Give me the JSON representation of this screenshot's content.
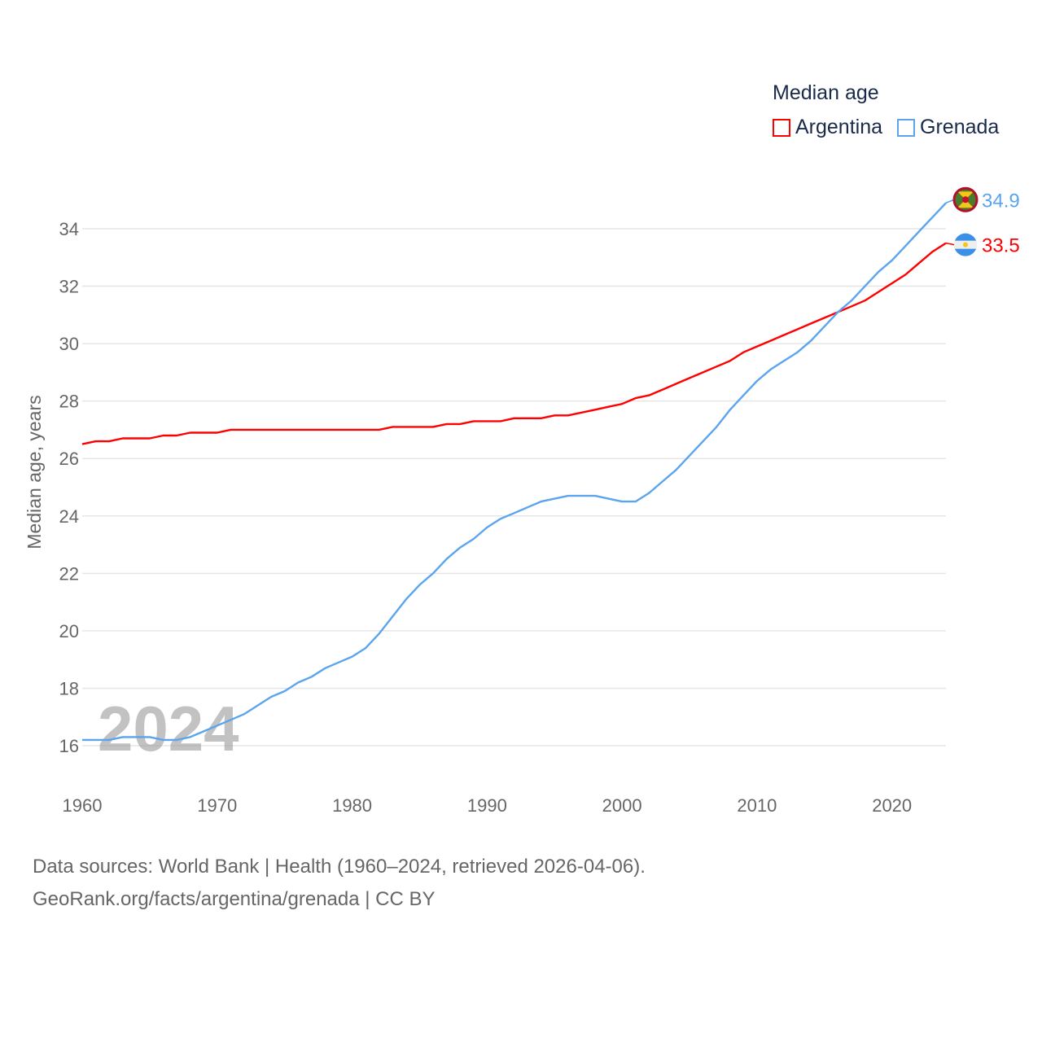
{
  "chart_data": {
    "type": "line",
    "title": "Median age",
    "xlabel": "",
    "ylabel": "Median age, years",
    "xlim": [
      1960,
      2024
    ],
    "ylim": [
      15,
      35
    ],
    "yticks": [
      16,
      18,
      20,
      22,
      24,
      26,
      28,
      30,
      32,
      34
    ],
    "xticks": [
      1960,
      1970,
      1980,
      1990,
      2000,
      2010,
      2020
    ],
    "grid": true,
    "legend_placement": "top-right",
    "year_watermark": "2024",
    "x": [
      1960,
      1961,
      1962,
      1963,
      1964,
      1965,
      1966,
      1967,
      1968,
      1969,
      1970,
      1971,
      1972,
      1973,
      1974,
      1975,
      1976,
      1977,
      1978,
      1979,
      1980,
      1981,
      1982,
      1983,
      1984,
      1985,
      1986,
      1987,
      1988,
      1989,
      1990,
      1991,
      1992,
      1993,
      1994,
      1995,
      1996,
      1997,
      1998,
      1999,
      2000,
      2001,
      2002,
      2003,
      2004,
      2005,
      2006,
      2007,
      2008,
      2009,
      2010,
      2011,
      2012,
      2013,
      2014,
      2015,
      2016,
      2017,
      2018,
      2019,
      2020,
      2021,
      2022,
      2023,
      2024
    ],
    "series": [
      {
        "name": "Argentina",
        "color": "#ff0000",
        "end_label": "33.5",
        "values": [
          26.5,
          26.6,
          26.6,
          26.7,
          26.7,
          26.7,
          26.8,
          26.8,
          26.9,
          26.9,
          26.9,
          27.0,
          27.0,
          27.0,
          27.0,
          27.0,
          27.0,
          27.0,
          27.0,
          27.0,
          27.0,
          27.0,
          27.0,
          27.1,
          27.1,
          27.1,
          27.1,
          27.2,
          27.2,
          27.3,
          27.3,
          27.3,
          27.4,
          27.4,
          27.4,
          27.5,
          27.5,
          27.6,
          27.7,
          27.8,
          27.9,
          28.1,
          28.2,
          28.4,
          28.6,
          28.8,
          29.0,
          29.2,
          29.4,
          29.7,
          29.9,
          30.1,
          30.3,
          30.5,
          30.7,
          30.9,
          31.1,
          31.3,
          31.5,
          31.8,
          32.1,
          32.4,
          32.8,
          33.2,
          33.5
        ]
      },
      {
        "name": "Grenada",
        "color": "#5ba4ee",
        "end_label": "34.9",
        "values": [
          16.2,
          16.2,
          16.2,
          16.3,
          16.3,
          16.3,
          16.2,
          16.2,
          16.3,
          16.5,
          16.7,
          16.9,
          17.1,
          17.4,
          17.7,
          17.9,
          18.2,
          18.4,
          18.7,
          18.9,
          19.1,
          19.4,
          19.9,
          20.5,
          21.1,
          21.6,
          22.0,
          22.5,
          22.9,
          23.2,
          23.6,
          23.9,
          24.1,
          24.3,
          24.5,
          24.6,
          24.7,
          24.7,
          24.7,
          24.6,
          24.5,
          24.5,
          24.8,
          25.2,
          25.6,
          26.1,
          26.6,
          27.1,
          27.7,
          28.2,
          28.7,
          29.1,
          29.4,
          29.7,
          30.1,
          30.6,
          31.1,
          31.5,
          32.0,
          32.5,
          32.9,
          33.4,
          33.9,
          34.4,
          34.9
        ]
      }
    ]
  },
  "legend": {
    "title": "Median age",
    "items": [
      "Argentina",
      "Grenada"
    ]
  },
  "footer": {
    "line1": "Data sources: World Bank | Health (1960–2024, retrieved 2026-04-06).",
    "line2": "GeoRank.org/facts/argentina/grenada | CC BY"
  }
}
